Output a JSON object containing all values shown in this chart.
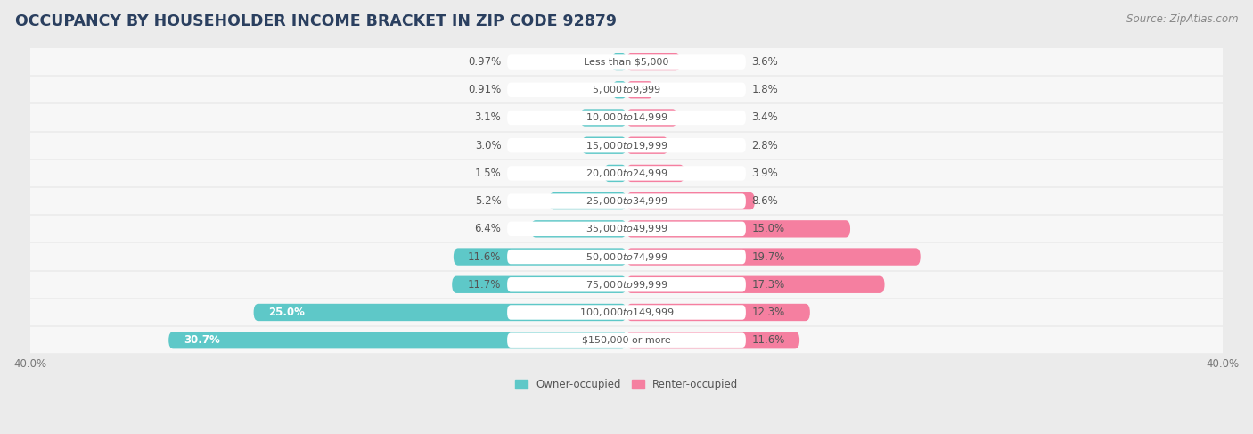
{
  "title": "OCCUPANCY BY HOUSEHOLDER INCOME BRACKET IN ZIP CODE 92879",
  "source": "Source: ZipAtlas.com",
  "categories": [
    "Less than $5,000",
    "$5,000 to $9,999",
    "$10,000 to $14,999",
    "$15,000 to $19,999",
    "$20,000 to $24,999",
    "$25,000 to $34,999",
    "$35,000 to $49,999",
    "$50,000 to $74,999",
    "$75,000 to $99,999",
    "$100,000 to $149,999",
    "$150,000 or more"
  ],
  "owner_values": [
    0.97,
    0.91,
    3.1,
    3.0,
    1.5,
    5.2,
    6.4,
    11.6,
    11.7,
    25.0,
    30.7
  ],
  "renter_values": [
    3.6,
    1.8,
    3.4,
    2.8,
    3.9,
    8.6,
    15.0,
    19.7,
    17.3,
    12.3,
    11.6
  ],
  "owner_color": "#5ec8c8",
  "renter_color": "#f57fa0",
  "background_color": "#ebebeb",
  "bar_background": "#f7f7f7",
  "axis_max": 40.0,
  "legend_owner": "Owner-occupied",
  "legend_renter": "Renter-occupied",
  "bar_height": 0.62,
  "title_fontsize": 12.5,
  "label_fontsize": 8.5,
  "source_fontsize": 8.5,
  "axis_label_fontsize": 8.5,
  "cat_label_fontsize": 8.0,
  "value_label_fontsize": 8.5
}
